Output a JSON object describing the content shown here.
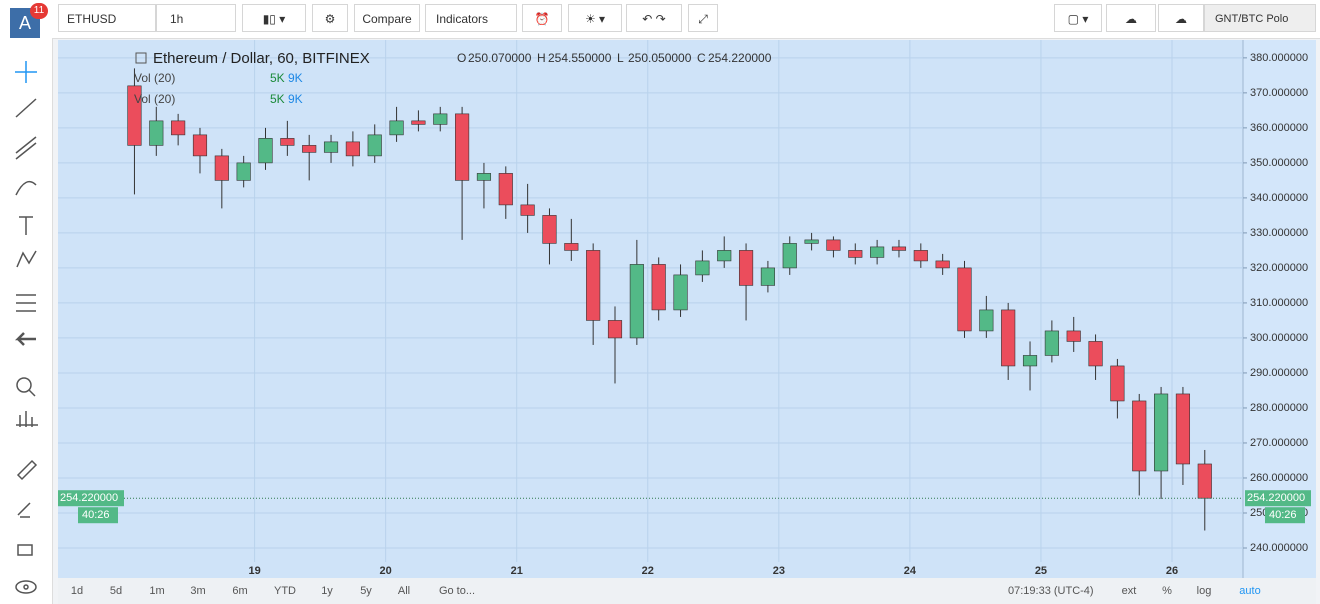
{
  "app": {
    "badge": "11",
    "avatar": "A"
  },
  "toolbar": {
    "symbol": "ETHUSD",
    "interval": "1h",
    "compare": "Compare",
    "indicators": "Indicators",
    "watch": "GNT/BTC Polo"
  },
  "legend": {
    "title": "Ethereum / Dollar, 60, BITFINEX",
    "ohlc": [
      {
        "key": "O",
        "value": "250.070000"
      },
      {
        "key": "H",
        "value": "254.550000"
      },
      {
        "key": "L",
        "value": "250.050000"
      },
      {
        "key": "C",
        "value": "254.220000"
      }
    ],
    "studies": [
      {
        "name": "Vol (20)",
        "a": "5K",
        "b": "9K"
      },
      {
        "name": "Vol (20)",
        "a": "5K",
        "b": "9K"
      }
    ]
  },
  "bottom": {
    "ranges": [
      "1d",
      "5d",
      "1m",
      "3m",
      "6m",
      "YTD",
      "1y",
      "5y",
      "All",
      "Go to..."
    ],
    "clock": "07:19:33 (UTC-4)",
    "toggles": [
      "ext",
      "%",
      "log",
      "auto"
    ]
  },
  "chart_data": {
    "type": "candlestick",
    "up_color": "#53b987",
    "down_color": "#eb4d5c",
    "grid": true,
    "last": {
      "value": 254.22,
      "label": "254.220000"
    },
    "countdown": "40:26",
    "xlim": [
      -12,
      205
    ],
    "xticks": [
      {
        "value": 24,
        "label": "19"
      },
      {
        "value": 48,
        "label": "20"
      },
      {
        "value": 72,
        "label": "21"
      },
      {
        "value": 96,
        "label": "22"
      },
      {
        "value": 120,
        "label": "23"
      },
      {
        "value": 144,
        "label": "24"
      },
      {
        "value": 168,
        "label": "25"
      },
      {
        "value": 192,
        "label": "26"
      }
    ],
    "ylim": [
      236,
      385.1
    ],
    "yticks": [
      {
        "value": 240,
        "label": "240.000000"
      },
      {
        "value": 250,
        "label": "250.000000"
      },
      {
        "value": 260,
        "label": "260.000000"
      },
      {
        "value": 270,
        "label": "270.000000"
      },
      {
        "value": 280,
        "label": "280.000000"
      },
      {
        "value": 290,
        "label": "290.000000"
      },
      {
        "value": 300,
        "label": "300.000000"
      },
      {
        "value": 310,
        "label": "310.000000"
      },
      {
        "value": 320,
        "label": "320.000000"
      },
      {
        "value": 330,
        "label": "330.000000"
      },
      {
        "value": 340,
        "label": "340.000000"
      },
      {
        "value": 350,
        "label": "350.000000"
      },
      {
        "value": 360,
        "label": "360.000000"
      },
      {
        "value": 370,
        "label": "370.000000"
      },
      {
        "value": 380,
        "label": "380.000000"
      }
    ],
    "x": [
      2,
      6,
      10,
      14,
      18,
      22,
      26,
      30,
      34,
      38,
      42,
      46,
      50,
      54,
      58,
      62,
      66,
      70,
      74,
      78,
      82,
      86,
      90,
      94,
      98,
      102,
      106,
      110,
      114,
      118,
      122,
      126,
      130,
      134,
      138,
      142,
      146,
      150,
      154,
      158,
      162,
      166,
      170,
      174,
      178,
      182,
      186,
      190,
      194,
      198
    ],
    "open": [
      372,
      355,
      362,
      358,
      352,
      345,
      350,
      357,
      355,
      353,
      356,
      352,
      358,
      362,
      361,
      364,
      345,
      347,
      338,
      335,
      327,
      325,
      305,
      300,
      321,
      308,
      318,
      322,
      325,
      315,
      320,
      327,
      328,
      325,
      323,
      326,
      325,
      322,
      320,
      302,
      308,
      292,
      295,
      302,
      299,
      292,
      282,
      262,
      284,
      264
    ],
    "high": [
      377,
      366,
      364,
      360,
      354,
      352,
      360,
      362,
      358,
      358,
      359,
      361,
      366,
      365,
      366,
      366,
      350,
      349,
      344,
      337,
      334,
      327,
      309,
      328,
      323,
      321,
      325,
      329,
      327,
      322,
      329,
      330,
      329,
      327,
      328,
      328,
      327,
      324,
      322,
      312,
      310,
      299,
      305,
      306,
      301,
      294,
      284,
      286,
      286,
      268
    ],
    "low": [
      341,
      352,
      355,
      347,
      337,
      343,
      348,
      352,
      345,
      350,
      349,
      350,
      356,
      359,
      359,
      328,
      337,
      334,
      330,
      321,
      322,
      298,
      287,
      298,
      305,
      306,
      316,
      320,
      305,
      313,
      318,
      325,
      323,
      321,
      321,
      323,
      320,
      318,
      300,
      300,
      288,
      285,
      293,
      296,
      288,
      277,
      255,
      254,
      258,
      245
    ],
    "close": [
      355,
      362,
      358,
      352,
      345,
      350,
      357,
      355,
      353,
      356,
      352,
      358,
      362,
      361,
      364,
      345,
      347,
      338,
      335,
      327,
      325,
      305,
      300,
      321,
      308,
      318,
      322,
      325,
      315,
      320,
      327,
      328,
      325,
      323,
      326,
      325,
      322,
      320,
      302,
      308,
      292,
      295,
      302,
      299,
      292,
      282,
      262,
      284,
      264,
      254.22
    ]
  }
}
